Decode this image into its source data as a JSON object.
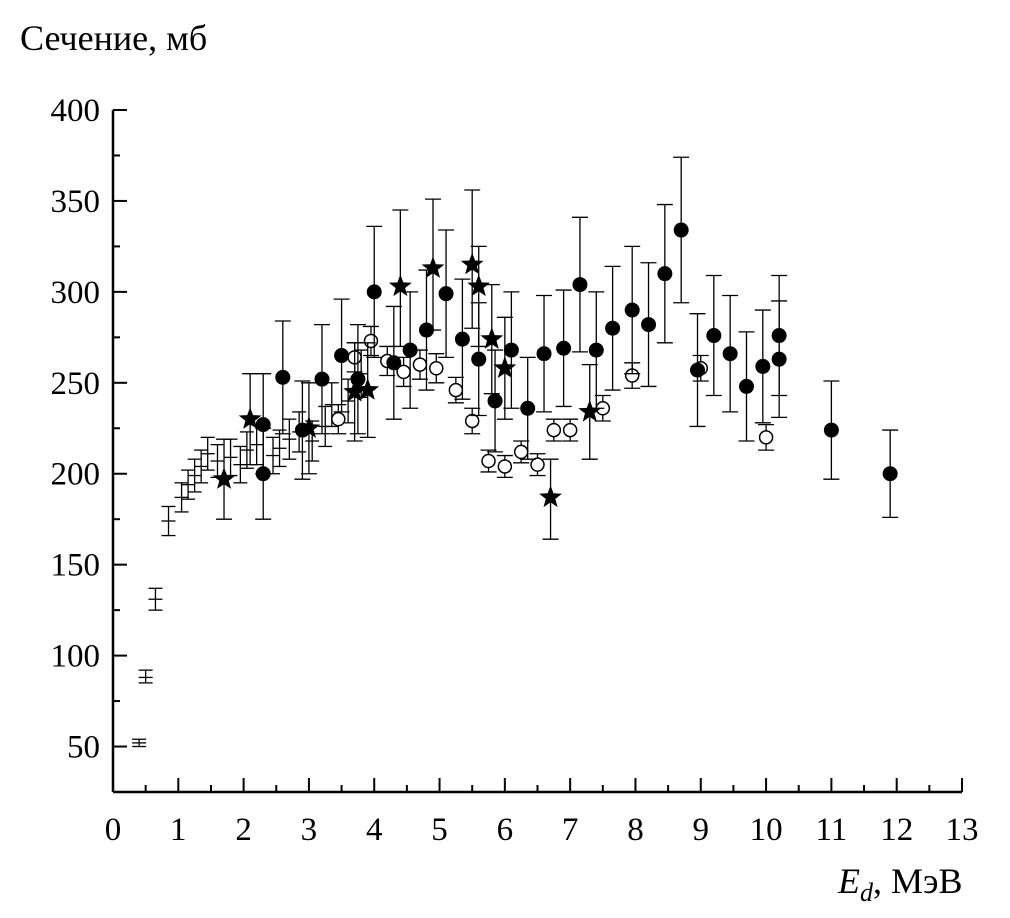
{
  "chart_data": {
    "type": "scatter",
    "ylabel": "Сечение, мб",
    "xlabel_main": "E",
    "xlabel_sub": "d",
    "xlabel_unit": ", МэВ",
    "xlim": [
      0,
      13
    ],
    "ylim": [
      25,
      400
    ],
    "x_ticks": [
      0,
      1,
      2,
      3,
      4,
      5,
      6,
      7,
      8,
      9,
      10,
      11,
      12,
      13
    ],
    "y_ticks": [
      50,
      100,
      150,
      200,
      250,
      300,
      350,
      400
    ],
    "series": [
      {
        "name": "filled-circles",
        "marker": "filled-circle",
        "points": [
          {
            "x": 2.3,
            "y": 227,
            "lo": 200,
            "hi": 255
          },
          {
            "x": 2.3,
            "y": 200,
            "lo": 175,
            "hi": 225
          },
          {
            "x": 2.6,
            "y": 253,
            "lo": 222,
            "hi": 284
          },
          {
            "x": 2.9,
            "y": 224,
            "lo": 197,
            "hi": 251
          },
          {
            "x": 3.2,
            "y": 252,
            "lo": 222,
            "hi": 282
          },
          {
            "x": 3.5,
            "y": 265,
            "lo": 234,
            "hi": 296
          },
          {
            "x": 3.75,
            "y": 252,
            "lo": 222,
            "hi": 282
          },
          {
            "x": 4.0,
            "y": 300,
            "lo": 264,
            "hi": 336
          },
          {
            "x": 4.3,
            "y": 261,
            "lo": 230,
            "hi": 292
          },
          {
            "x": 4.55,
            "y": 268,
            "lo": 236,
            "hi": 300
          },
          {
            "x": 4.8,
            "y": 279,
            "lo": 246,
            "hi": 312
          },
          {
            "x": 5.1,
            "y": 299,
            "lo": 264,
            "hi": 334
          },
          {
            "x": 5.35,
            "y": 274,
            "lo": 241,
            "hi": 307
          },
          {
            "x": 5.6,
            "y": 263,
            "lo": 232,
            "hi": 294
          },
          {
            "x": 5.85,
            "y": 240,
            "lo": 212,
            "hi": 268
          },
          {
            "x": 6.1,
            "y": 268,
            "lo": 236,
            "hi": 300
          },
          {
            "x": 6.35,
            "y": 236,
            "lo": 208,
            "hi": 264
          },
          {
            "x": 6.6,
            "y": 266,
            "lo": 234,
            "hi": 298
          },
          {
            "x": 6.9,
            "y": 269,
            "lo": 237,
            "hi": 301
          },
          {
            "x": 7.15,
            "y": 304,
            "lo": 267,
            "hi": 341
          },
          {
            "x": 7.4,
            "y": 268,
            "lo": 236,
            "hi": 300
          },
          {
            "x": 7.65,
            "y": 280,
            "lo": 246,
            "hi": 314
          },
          {
            "x": 7.95,
            "y": 290,
            "lo": 255,
            "hi": 325
          },
          {
            "x": 8.2,
            "y": 282,
            "lo": 248,
            "hi": 316
          },
          {
            "x": 8.45,
            "y": 310,
            "lo": 272,
            "hi": 348
          },
          {
            "x": 8.7,
            "y": 334,
            "lo": 294,
            "hi": 374
          },
          {
            "x": 8.95,
            "y": 257,
            "lo": 226,
            "hi": 288
          },
          {
            "x": 9.2,
            "y": 276,
            "lo": 243,
            "hi": 309
          },
          {
            "x": 9.45,
            "y": 266,
            "lo": 234,
            "hi": 298
          },
          {
            "x": 9.7,
            "y": 248,
            "lo": 218,
            "hi": 278
          },
          {
            "x": 9.95,
            "y": 259,
            "lo": 228,
            "hi": 290
          },
          {
            "x": 10.2,
            "y": 276,
            "lo": 243,
            "hi": 309
          },
          {
            "x": 10.2,
            "y": 263,
            "lo": 231,
            "hi": 295
          },
          {
            "x": 11.0,
            "y": 224,
            "lo": 197,
            "hi": 251
          },
          {
            "x": 11.9,
            "y": 200,
            "lo": 176,
            "hi": 224
          }
        ]
      },
      {
        "name": "open-circles",
        "marker": "open-circle",
        "points": [
          {
            "x": 3.45,
            "y": 230,
            "lo": 222,
            "hi": 238
          },
          {
            "x": 3.7,
            "y": 264,
            "lo": 256,
            "hi": 272
          },
          {
            "x": 3.95,
            "y": 273,
            "lo": 265,
            "hi": 281
          },
          {
            "x": 4.2,
            "y": 262,
            "lo": 254,
            "hi": 270
          },
          {
            "x": 4.45,
            "y": 256,
            "lo": 248,
            "hi": 264
          },
          {
            "x": 4.7,
            "y": 260,
            "lo": 252,
            "hi": 268
          },
          {
            "x": 4.95,
            "y": 258,
            "lo": 250,
            "hi": 266
          },
          {
            "x": 5.25,
            "y": 246,
            "lo": 239,
            "hi": 253
          },
          {
            "x": 5.5,
            "y": 229,
            "lo": 222,
            "hi": 236
          },
          {
            "x": 5.75,
            "y": 207,
            "lo": 201,
            "hi": 213
          },
          {
            "x": 6.0,
            "y": 204,
            "lo": 198,
            "hi": 210
          },
          {
            "x": 6.25,
            "y": 212,
            "lo": 206,
            "hi": 218
          },
          {
            "x": 6.5,
            "y": 205,
            "lo": 199,
            "hi": 211
          },
          {
            "x": 6.75,
            "y": 224,
            "lo": 218,
            "hi": 230
          },
          {
            "x": 7.0,
            "y": 224,
            "lo": 218,
            "hi": 230
          },
          {
            "x": 7.5,
            "y": 236,
            "lo": 229,
            "hi": 243
          },
          {
            "x": 7.95,
            "y": 254,
            "lo": 247,
            "hi": 261
          },
          {
            "x": 9.0,
            "y": 258,
            "lo": 251,
            "hi": 265
          },
          {
            "x": 10.0,
            "y": 220,
            "lo": 213,
            "hi": 227
          }
        ]
      },
      {
        "name": "stars",
        "marker": "star",
        "points": [
          {
            "x": 1.7,
            "y": 197,
            "lo": 175,
            "hi": 219
          },
          {
            "x": 2.1,
            "y": 230,
            "lo": 205,
            "hi": 255
          },
          {
            "x": 3.0,
            "y": 225,
            "lo": 200,
            "hi": 250
          },
          {
            "x": 3.7,
            "y": 245,
            "lo": 218,
            "hi": 272
          },
          {
            "x": 3.9,
            "y": 246,
            "lo": 220,
            "hi": 272
          },
          {
            "x": 4.4,
            "y": 303,
            "lo": 270,
            "hi": 345
          },
          {
            "x": 4.9,
            "y": 313,
            "lo": 279,
            "hi": 351
          },
          {
            "x": 5.5,
            "y": 315,
            "lo": 280,
            "hi": 356
          },
          {
            "x": 5.6,
            "y": 303,
            "lo": 270,
            "hi": 325
          },
          {
            "x": 5.8,
            "y": 274,
            "lo": 244,
            "hi": 304
          },
          {
            "x": 6.0,
            "y": 258,
            "lo": 230,
            "hi": 286
          },
          {
            "x": 6.7,
            "y": 187,
            "lo": 164,
            "hi": 208
          },
          {
            "x": 7.3,
            "y": 234,
            "lo": 208,
            "hi": 260
          }
        ]
      },
      {
        "name": "crosses",
        "marker": "error-bar-only",
        "points": [
          {
            "x": 0.4,
            "y": 52,
            "lo": 50,
            "hi": 54
          },
          {
            "x": 0.5,
            "y": 88,
            "lo": 85,
            "hi": 92
          },
          {
            "x": 0.65,
            "y": 131,
            "lo": 125,
            "hi": 137
          },
          {
            "x": 0.85,
            "y": 174,
            "lo": 166,
            "hi": 182
          },
          {
            "x": 1.05,
            "y": 187,
            "lo": 179,
            "hi": 195
          },
          {
            "x": 1.15,
            "y": 194,
            "lo": 186,
            "hi": 202
          },
          {
            "x": 1.25,
            "y": 199,
            "lo": 190,
            "hi": 208
          },
          {
            "x": 1.35,
            "y": 204,
            "lo": 195,
            "hi": 213
          },
          {
            "x": 1.45,
            "y": 211,
            "lo": 202,
            "hi": 220
          },
          {
            "x": 1.6,
            "y": 207,
            "lo": 198,
            "hi": 216
          },
          {
            "x": 1.8,
            "y": 209,
            "lo": 199,
            "hi": 219
          },
          {
            "x": 1.95,
            "y": 205,
            "lo": 195,
            "hi": 215
          },
          {
            "x": 2.05,
            "y": 213,
            "lo": 203,
            "hi": 223
          },
          {
            "x": 2.2,
            "y": 216,
            "lo": 205,
            "hi": 227
          },
          {
            "x": 2.45,
            "y": 210,
            "lo": 200,
            "hi": 220
          },
          {
            "x": 2.55,
            "y": 214,
            "lo": 204,
            "hi": 224
          },
          {
            "x": 2.7,
            "y": 219,
            "lo": 208,
            "hi": 230
          },
          {
            "x": 2.85,
            "y": 223,
            "lo": 212,
            "hi": 234
          },
          {
            "x": 3.05,
            "y": 218,
            "lo": 207,
            "hi": 229
          },
          {
            "x": 3.25,
            "y": 226,
            "lo": 215,
            "hi": 237
          },
          {
            "x": 3.35,
            "y": 238,
            "lo": 226,
            "hi": 250
          },
          {
            "x": 3.6,
            "y": 240,
            "lo": 228,
            "hi": 252
          },
          {
            "x": 3.8,
            "y": 255,
            "lo": 242,
            "hi": 268
          }
        ]
      }
    ]
  }
}
